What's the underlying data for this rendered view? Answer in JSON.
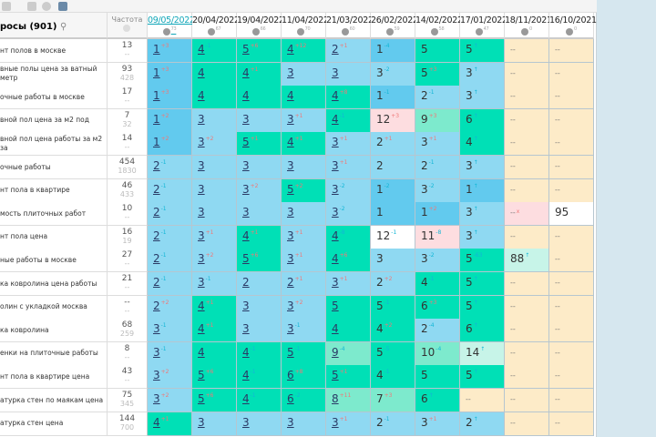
{
  "header": {
    "keywords_label": "росы (901)",
    "frequency_label": "Частота",
    "dates": [
      {
        "date": "09/05/2022",
        "count": "73"
      },
      {
        "date": "20/04/2022",
        "count": "67"
      },
      {
        "date": "19/04/2022",
        "count": "66"
      },
      {
        "date": "11/04/2022",
        "count": "70"
      },
      {
        "date": "21/03/2022",
        "count": "60"
      },
      {
        "date": "26/02/2022",
        "count": "59"
      },
      {
        "date": "14/02/2022",
        "count": "58"
      },
      {
        "date": "17/01/2022",
        "count": "47"
      },
      {
        "date": "18/11/2021",
        "count": "0"
      },
      {
        "date": "16/10/2021",
        "count": "0"
      }
    ]
  },
  "colors": {
    "b": "#8fd9f2",
    "db": "#62caee",
    "g": "#00e0b6",
    "lg": "#7deacd",
    "pl": "#c7f4e8",
    "pk": "#fddde0",
    "w": "#ffffff",
    "c": "#fdebc8"
  },
  "rows": [
    {
      "kw": "нт полов в москве",
      "f": "13",
      "f2": "--",
      "cells": [
        [
          "1",
          "+3",
          "db"
        ],
        [
          "4",
          "-1",
          "g"
        ],
        [
          "5",
          "+6",
          "g"
        ],
        [
          "4",
          "+12",
          "g"
        ],
        [
          "2",
          "+1",
          "b"
        ],
        [
          "1",
          "-4",
          "db"
        ],
        [
          "5",
          "",
          "g"
        ],
        [
          "5",
          "↑",
          "g"
        ],
        [
          "--",
          "",
          "c"
        ],
        [
          "--",
          "",
          "c"
        ]
      ]
    },
    {
      "kw": "вные полы цена за ватный метр",
      "f": "93",
      "f2": "428",
      "cells": [
        [
          "1",
          "+3",
          "db"
        ],
        [
          "4",
          "",
          "g"
        ],
        [
          "4",
          "+1",
          "g"
        ],
        [
          "3",
          "",
          "b"
        ],
        [
          "3",
          "",
          "b"
        ],
        [
          "3",
          "-2",
          "b"
        ],
        [
          "5",
          "+3",
          "g"
        ],
        [
          "3",
          "↑",
          "b"
        ],
        [
          "--",
          "",
          "c"
        ],
        [
          "--",
          "",
          "c"
        ]
      ]
    },
    {
      "kw": "очные работы в москве",
      "f": "17",
      "f2": "--",
      "cells": [
        [
          "1",
          "+3",
          "db"
        ],
        [
          "4",
          "",
          "g"
        ],
        [
          "4",
          "",
          "g"
        ],
        [
          "4",
          "",
          "g"
        ],
        [
          "4",
          "+8",
          "g"
        ],
        [
          "1",
          "-1",
          "db"
        ],
        [
          "2",
          "-1",
          "b"
        ],
        [
          "3",
          "↑",
          "b"
        ],
        [
          "--",
          "",
          "c"
        ],
        [
          "--",
          "",
          "c"
        ]
      ]
    },
    {
      "kw": "вной пол цена за м2 под",
      "f": "7",
      "f2": "32",
      "cells": [
        [
          "1",
          "+2",
          "db"
        ],
        [
          "3",
          "",
          "b"
        ],
        [
          "3",
          "",
          "b"
        ],
        [
          "3",
          "+1",
          "b"
        ],
        [
          "4",
          "-1",
          "g"
        ],
        [
          "12",
          "+3",
          "pk"
        ],
        [
          "9",
          "+3",
          "lg"
        ],
        [
          "6",
          "↑",
          "g"
        ],
        [
          "--",
          "",
          "c"
        ],
        [
          "--",
          "",
          "c"
        ]
      ]
    },
    {
      "kw": "вной пол цена работы за м2 за",
      "f": "14",
      "f2": "--",
      "cells": [
        [
          "1",
          "+2",
          "db"
        ],
        [
          "3",
          "+2",
          "b"
        ],
        [
          "5",
          "+1",
          "g"
        ],
        [
          "4",
          "+1",
          "g"
        ],
        [
          "3",
          "+1",
          "b"
        ],
        [
          "2",
          "+1",
          "b"
        ],
        [
          "3",
          "+1",
          "b"
        ],
        [
          "4",
          "↑",
          "g"
        ],
        [
          "--",
          "",
          "c"
        ],
        [
          "--",
          "",
          "c"
        ]
      ]
    },
    {
      "kw": "очные работы",
      "f": "454",
      "f2": "1830",
      "cells": [
        [
          "2",
          "-1",
          "b"
        ],
        [
          "3",
          "",
          "b"
        ],
        [
          "3",
          "",
          "b"
        ],
        [
          "3",
          "",
          "b"
        ],
        [
          "3",
          "+1",
          "b"
        ],
        [
          "2",
          "",
          "b"
        ],
        [
          "2",
          "-1",
          "b"
        ],
        [
          "3",
          "↑",
          "b"
        ],
        [
          "--",
          "",
          "c"
        ],
        [
          "--",
          "",
          "c"
        ]
      ]
    },
    {
      "kw": "нт пола в квартире",
      "f": "46",
      "f2": "433",
      "cells": [
        [
          "2",
          "-1",
          "b"
        ],
        [
          "3",
          "",
          "b"
        ],
        [
          "3",
          "+2",
          "b"
        ],
        [
          "5",
          "+2",
          "g"
        ],
        [
          "3",
          "-2",
          "b"
        ],
        [
          "1",
          "-2",
          "db"
        ],
        [
          "3",
          "-2",
          "b"
        ],
        [
          "1",
          "↑",
          "db"
        ],
        [
          "--",
          "",
          "c"
        ],
        [
          "--",
          "",
          "c"
        ]
      ]
    },
    {
      "kw": "мость плиточных работ",
      "f": "10",
      "f2": "--",
      "cells": [
        [
          "2",
          "-1",
          "b"
        ],
        [
          "3",
          "",
          "b"
        ],
        [
          "3",
          "",
          "b"
        ],
        [
          "3",
          "",
          "b"
        ],
        [
          "3",
          "-2",
          "b"
        ],
        [
          "1",
          "",
          "db"
        ],
        [
          "1",
          "+2",
          "db"
        ],
        [
          "3",
          "↑",
          "b"
        ],
        [
          "--",
          "x",
          "pk"
        ],
        [
          "95",
          "",
          "w"
        ]
      ]
    },
    {
      "kw": "нт пола цена",
      "f": "16",
      "f2": "19",
      "cells": [
        [
          "2",
          "-1",
          "b"
        ],
        [
          "3",
          "+1",
          "b"
        ],
        [
          "4",
          "+1",
          "g"
        ],
        [
          "3",
          "+1",
          "b"
        ],
        [
          "4",
          "-8",
          "g"
        ],
        [
          "12",
          "-1",
          "w"
        ],
        [
          "11",
          "-8",
          "pk"
        ],
        [
          "3",
          "↑",
          "b"
        ],
        [
          "--",
          "",
          "c"
        ],
        [
          "--",
          "",
          "c"
        ]
      ]
    },
    {
      "kw": "ные работы в москве",
      "f": "27",
      "f2": "--",
      "cells": [
        [
          "2",
          "-1",
          "b"
        ],
        [
          "3",
          "+2",
          "b"
        ],
        [
          "5",
          "+6",
          "g"
        ],
        [
          "3",
          "+1",
          "b"
        ],
        [
          "4",
          "+6",
          "g"
        ],
        [
          "3",
          "",
          "b"
        ],
        [
          "3",
          "-2",
          "b"
        ],
        [
          "5",
          "-63",
          "g"
        ],
        [
          "88",
          "↑",
          "pl"
        ],
        [
          "--",
          "",
          "c"
        ]
      ]
    },
    {
      "kw": "ка ковролина цена работы",
      "f": "21",
      "f2": "--",
      "cells": [
        [
          "2",
          "-1",
          "b"
        ],
        [
          "3",
          "-1",
          "b"
        ],
        [
          "2",
          "",
          "b"
        ],
        [
          "2",
          "+1",
          "b"
        ],
        [
          "3",
          "+1",
          "b"
        ],
        [
          "2",
          "+2",
          "b"
        ],
        [
          "4",
          "-1",
          "g"
        ],
        [
          "5",
          "↑",
          "g"
        ],
        [
          "--",
          "",
          "c"
        ],
        [
          "--",
          "",
          "c"
        ]
      ]
    },
    {
      "kw": "олин с укладкой москва",
      "f": "--",
      "f2": "--",
      "cells": [
        [
          "2",
          "+2",
          "b"
        ],
        [
          "4",
          "+1",
          "g"
        ],
        [
          "3",
          "",
          "b"
        ],
        [
          "3",
          "+2",
          "b"
        ],
        [
          "5",
          "",
          "g"
        ],
        [
          "5",
          "-1",
          "g"
        ],
        [
          "6",
          "+3",
          "g"
        ],
        [
          "5",
          "↑",
          "g"
        ],
        [
          "--",
          "",
          "c"
        ],
        [
          "--",
          "",
          "c"
        ]
      ]
    },
    {
      "kw": "ка ковролина",
      "f": "68",
      "f2": "259",
      "cells": [
        [
          "3",
          "-1",
          "b"
        ],
        [
          "4",
          "+1",
          "g"
        ],
        [
          "3",
          "",
          "b"
        ],
        [
          "3",
          "-1",
          "b"
        ],
        [
          "4",
          "",
          "g"
        ],
        [
          "4",
          "+2",
          "g"
        ],
        [
          "2",
          "-4",
          "b"
        ],
        [
          "6",
          "↑",
          "g"
        ],
        [
          "--",
          "",
          "c"
        ],
        [
          "--",
          "",
          "c"
        ]
      ]
    },
    {
      "kw": "енки на плиточные работы",
      "f": "8",
      "f2": "--",
      "cells": [
        [
          "3",
          "-1",
          "b"
        ],
        [
          "4",
          "",
          "g"
        ],
        [
          "4",
          "-1",
          "g"
        ],
        [
          "5",
          "-1",
          "g"
        ],
        [
          "9",
          "-4",
          "lg"
        ],
        [
          "5",
          "-5",
          "g"
        ],
        [
          "10",
          "-4",
          "lg"
        ],
        [
          "14",
          "↑",
          "pl"
        ],
        [
          "--",
          "",
          "c"
        ],
        [
          "--",
          "",
          "c"
        ]
      ]
    },
    {
      "kw": "нт пола в квартире цена",
      "f": "43",
      "f2": "--",
      "cells": [
        [
          "3",
          "+2",
          "b"
        ],
        [
          "5",
          "+6",
          "g"
        ],
        [
          "4",
          "-1",
          "g"
        ],
        [
          "6",
          "+8",
          "g"
        ],
        [
          "5",
          "+1",
          "g"
        ],
        [
          "4",
          "-1",
          "g"
        ],
        [
          "5",
          "",
          "g"
        ],
        [
          "5",
          "↑",
          "g"
        ],
        [
          "--",
          "",
          "c"
        ],
        [
          "--",
          "",
          "c"
        ]
      ]
    },
    {
      "kw": "атурка стен по маякам цена",
      "f": "75",
      "f2": "345",
      "cells": [
        [
          "3",
          "+2",
          "b"
        ],
        [
          "5",
          "+6",
          "g"
        ],
        [
          "4",
          "-1",
          "g"
        ],
        [
          "6",
          "-2",
          "g"
        ],
        [
          "8",
          "+11",
          "lg"
        ],
        [
          "7",
          "+3",
          "lg"
        ],
        [
          "6",
          "↑",
          "g"
        ],
        [
          "--",
          "",
          "c"
        ],
        [
          "--",
          "",
          "c"
        ],
        [
          "--",
          "",
          "c"
        ]
      ]
    },
    {
      "kw": "атурка стен цена",
      "f": "144",
      "f2": "700",
      "cells": [
        [
          "4",
          "+1",
          "g"
        ],
        [
          "3",
          "",
          "b"
        ],
        [
          "3",
          "",
          "b"
        ],
        [
          "3",
          "",
          "b"
        ],
        [
          "3",
          "+1",
          "b"
        ],
        [
          "2",
          "-1",
          "b"
        ],
        [
          "3",
          "+1",
          "b"
        ],
        [
          "2",
          "↑",
          "b"
        ],
        [
          "--",
          "",
          "c"
        ],
        [
          "--",
          "",
          "c"
        ]
      ]
    }
  ]
}
